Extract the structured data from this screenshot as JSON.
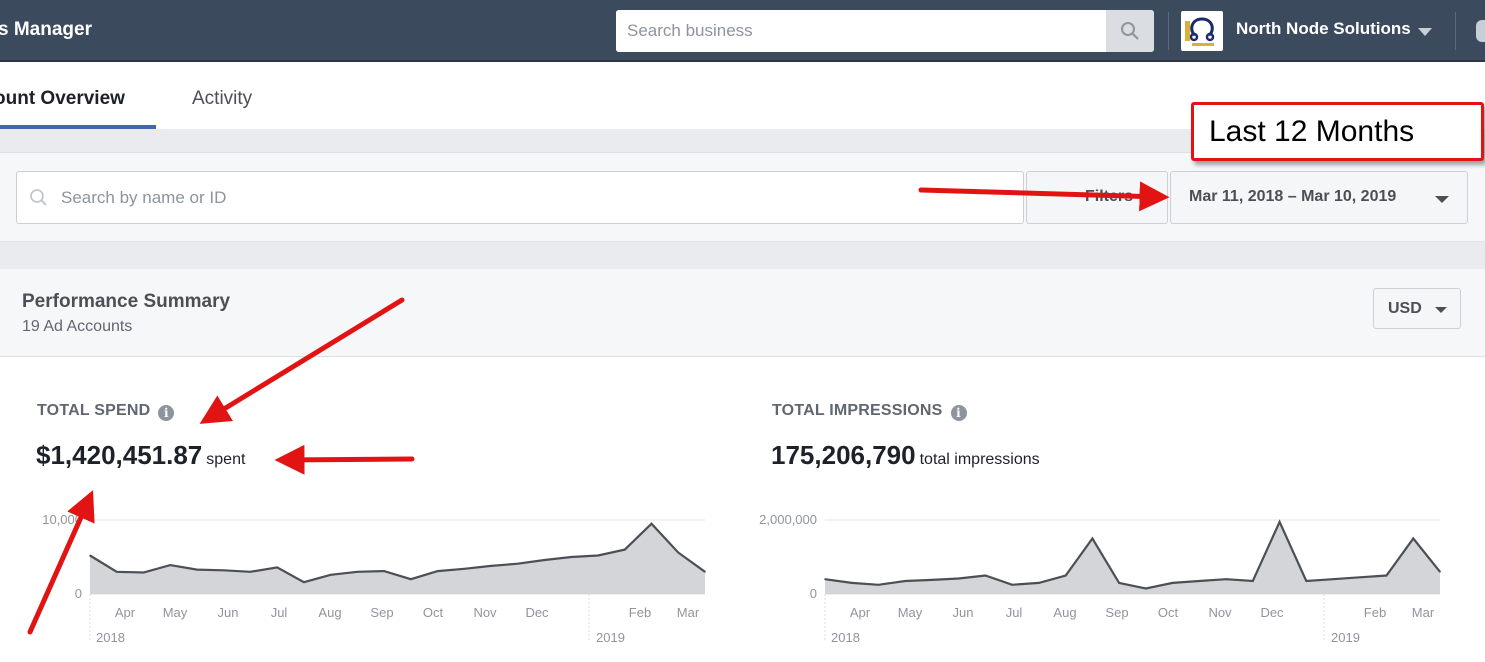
{
  "header": {
    "app_title": "s Manager",
    "search_placeholder": "Search business",
    "business_name": "North Node Solutions"
  },
  "tabs": [
    {
      "label": "ount Overview",
      "active": true
    },
    {
      "label": "Activity",
      "active": false
    }
  ],
  "filters": {
    "search_placeholder": "Search by name or ID",
    "filters_label": "Filters",
    "date_range": "Mar 11, 2018 – Mar 10, 2019"
  },
  "annotation": {
    "box_text": "Last 12 Months"
  },
  "summary": {
    "title": "Performance Summary",
    "subtitle": "19 Ad Accounts",
    "currency": "USD"
  },
  "metrics": {
    "spend": {
      "label": "TOTAL SPEND",
      "value": "$1,420,451.87",
      "unit": "spent"
    },
    "impressions": {
      "label": "TOTAL IMPRESSIONS",
      "value": "175,206,790",
      "unit": "total impressions"
    }
  },
  "colors": {
    "topbar": "#3b4a5c",
    "accent": "#4267b2",
    "annotation_red": "#e21313",
    "chart_line": "#4b4f56",
    "chart_fill": "#d3d5d9"
  },
  "chart_data": [
    {
      "type": "area",
      "y_tick_labels": [
        "10,000",
        "0"
      ],
      "ylim": [
        0,
        10000
      ],
      "x_tick_labels": [
        "Apr",
        "May",
        "Jun",
        "Jul",
        "Aug",
        "Sep",
        "Oct",
        "Nov",
        "Dec",
        "Feb",
        "Mar"
      ],
      "year_labels": [
        "2018",
        "2019"
      ],
      "x": [
        "Mar",
        "Apr",
        "Apr",
        "May",
        "May",
        "Jun",
        "Jun",
        "Jul",
        "Jul",
        "Aug",
        "Aug",
        "Sep",
        "Sep",
        "Oct",
        "Oct",
        "Nov",
        "Nov",
        "Dec",
        "Dec",
        "Jan",
        "Jan",
        "Feb",
        "Feb",
        "Mar"
      ],
      "values": [
        5200,
        3000,
        2900,
        3900,
        3300,
        3200,
        3000,
        3600,
        1600,
        2600,
        3000,
        3100,
        2000,
        3100,
        3400,
        3800,
        4100,
        4600,
        5000,
        5200,
        6000,
        9500,
        5600,
        3000
      ]
    },
    {
      "type": "area",
      "y_tick_labels": [
        "2,000,000",
        "0"
      ],
      "ylim": [
        0,
        2000000
      ],
      "x_tick_labels": [
        "Apr",
        "May",
        "Jun",
        "Jul",
        "Aug",
        "Sep",
        "Oct",
        "Nov",
        "Dec",
        "Feb",
        "Mar"
      ],
      "year_labels": [
        "2018",
        "2019"
      ],
      "x": [
        "Mar",
        "Apr",
        "Apr",
        "May",
        "May",
        "Jun",
        "Jun",
        "Jul",
        "Jul",
        "Aug",
        "Aug",
        "Sep",
        "Sep",
        "Oct",
        "Oct",
        "Nov",
        "Nov",
        "Dec",
        "Dec",
        "Jan",
        "Jan",
        "Feb",
        "Feb",
        "Mar"
      ],
      "values": [
        400000,
        300000,
        250000,
        350000,
        380000,
        420000,
        500000,
        250000,
        300000,
        500000,
        1500000,
        300000,
        150000,
        300000,
        350000,
        400000,
        350000,
        1950000,
        350000,
        400000,
        450000,
        500000,
        1500000,
        600000
      ]
    }
  ]
}
